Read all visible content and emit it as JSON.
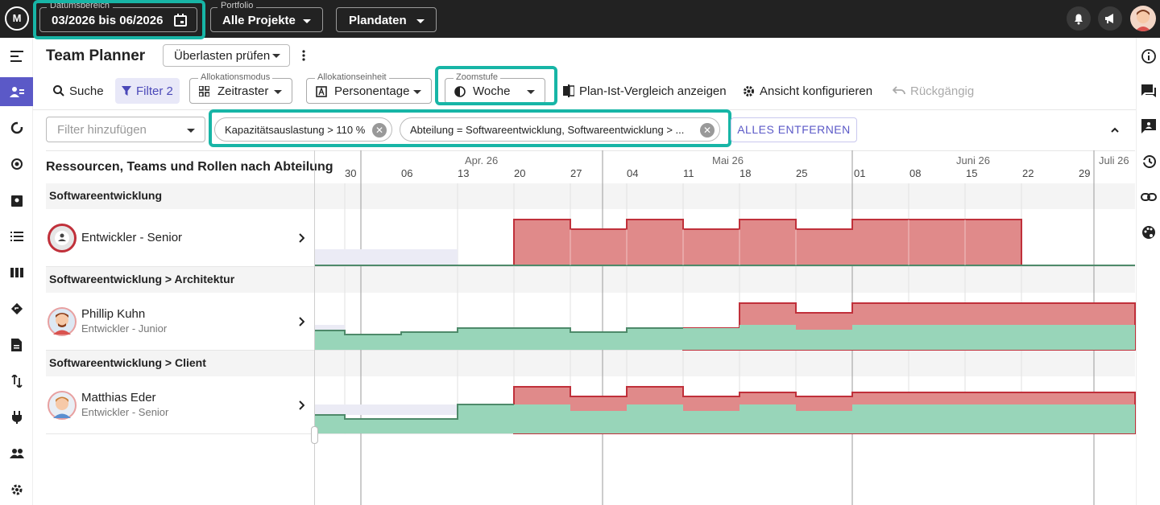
{
  "topbar": {
    "logo_text": "M",
    "date_range": {
      "legend": "Datumsbereich",
      "value": "03/2026 bis 06/2026"
    },
    "portfolio": {
      "legend": "Portfolio",
      "value": "Alle Projekte"
    },
    "data_source": {
      "value": "Plandaten"
    },
    "icons": [
      "bell-icon",
      "megaphone-icon",
      "user-avatar"
    ]
  },
  "sidebar": {
    "items": [
      {
        "icon": "menu-icon"
      },
      {
        "icon": "team-planner-icon",
        "active": true
      },
      {
        "icon": "sync-icon"
      },
      {
        "icon": "target-icon"
      },
      {
        "icon": "clipboard-icon"
      },
      {
        "icon": "list-icon"
      },
      {
        "icon": "columns-icon"
      },
      {
        "icon": "routing-icon"
      },
      {
        "icon": "document-icon"
      },
      {
        "icon": "swap-icon"
      },
      {
        "icon": "plug-icon"
      },
      {
        "icon": "people-icon"
      },
      {
        "icon": "settings-icon"
      }
    ]
  },
  "rightbar": {
    "icons": [
      "info-icon",
      "comments-icon",
      "feedback-icon",
      "history-icon",
      "link-icon",
      "palette-icon"
    ]
  },
  "header": {
    "title": "Team Planner",
    "overload_check": "Überlasten prüfen"
  },
  "toolbar": {
    "search": "Suche",
    "filter": "Filter 2",
    "allocation_mode": {
      "legend": "Allokationsmodus",
      "value": "Zeitraster"
    },
    "allocation_unit": {
      "legend": "Allokationseinheit",
      "value": "Personentage"
    },
    "zoom": {
      "legend": "Zoomstufe",
      "value": "Woche"
    },
    "plan_actual": "Plan-Ist-Vergleich anzeigen",
    "configure": "Ansicht konfigurieren",
    "undo": "Rückgängig"
  },
  "filters": {
    "placeholder": "Filter hinzufügen",
    "chips": [
      "Kapazitätsauslastung > 110 %",
      "Abteilung = Softwareentwicklung, Softwareentwicklung > ..."
    ],
    "clear_all": "ALLES ENTFERNEN"
  },
  "grid": {
    "title": "Ressourcen, Teams und Rollen nach Abteilung",
    "months": [
      "Apr. 26",
      "Mai 26",
      "Juni 26",
      "Juli 26"
    ],
    "weeks": [
      "30",
      "06",
      "13",
      "20",
      "27",
      "04",
      "11",
      "18",
      "25",
      "01",
      "08",
      "15",
      "22",
      "29"
    ],
    "groups": [
      {
        "label": "Softwareentwicklung",
        "people": [
          {
            "name": "Entwickler - Senior",
            "role": ""
          }
        ]
      },
      {
        "label": "Softwareentwicklung > Architektur",
        "people": [
          {
            "name": "Phillip Kuhn",
            "role": "Entwickler - Junior"
          }
        ]
      },
      {
        "label": "Softwareentwicklung > Client",
        "people": [
          {
            "name": "Matthias Eder",
            "role": "Entwickler - Senior"
          }
        ]
      }
    ]
  },
  "colors": {
    "accent": "#5b59c7",
    "highlight": "#17b5a6",
    "over": "#e08a8a",
    "over_line": "#c0303a",
    "ok": "#98d5b9",
    "ok_line": "#4e8a6a"
  }
}
